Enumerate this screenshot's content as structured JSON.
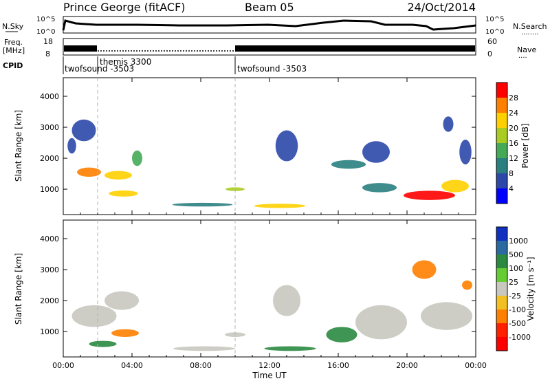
{
  "header": {
    "station": "Prince George (fitACF)",
    "beam": "Beam 05",
    "date": "24/Oct/2014"
  },
  "panels": {
    "nsky": {
      "label": "N.Sky",
      "ticks_left": [
        "10^5",
        "10^0"
      ],
      "ticks_right": [
        "10^5",
        "10^0"
      ],
      "right_label": "N.Search",
      "right_label_dots": "........"
    },
    "freq": {
      "label_top": "Freq.",
      "label_bottom": "[MHz]",
      "ticks_left": [
        "18",
        "8"
      ],
      "ticks_right": [
        "60",
        "0"
      ],
      "right_label": "Nave",
      "right_label_dots": "...."
    },
    "cpid": {
      "label": "CPID",
      "programs": [
        {
          "name": "twofsound -3503",
          "start_hour": 0.0,
          "end_hour": 2.0
        },
        {
          "name": "themis 3300",
          "start_hour": 2.0,
          "end_hour": 10.0
        },
        {
          "name": "twofsound -3503",
          "start_hour": 10.0,
          "end_hour": 24.0
        }
      ]
    },
    "power": {
      "ylabel": "Slant Range [km]",
      "colorbar_label": "Power [dB]",
      "colorbar_ticks": [
        "28",
        "24",
        "20",
        "16",
        "12",
        "8",
        "4"
      ],
      "colorbar_colors": [
        "#ff0000",
        "#ff7f00",
        "#ffd000",
        "#aacc22",
        "#44aa55",
        "#2a7f80",
        "#2c48a8",
        "#0000ff"
      ]
    },
    "velocity": {
      "ylabel": "Slant Range [km]",
      "colorbar_label": "Velocity [m s⁻¹]",
      "colorbar_ticks": [
        "1000",
        "500",
        "100",
        "25",
        "-25",
        "-100",
        "-500",
        "-1000"
      ],
      "colorbar_colors": [
        "#1030c0",
        "#2a6aa0",
        "#2a8a40",
        "#66cc33",
        "#c8c8c0",
        "#f2c020",
        "#ff8000",
        "#ff2000",
        "#ff0000"
      ]
    }
  },
  "xaxis": {
    "ticks": [
      "00:00",
      "04:00",
      "08:00",
      "12:00",
      "16:00",
      "20:00",
      "00:00"
    ],
    "label": "Time UT"
  },
  "chart_data": [
    {
      "type": "heatmap",
      "name": "power",
      "title": "",
      "xlabel": "Time UT",
      "ylabel": "Slant Range [km]",
      "xlim": [
        0,
        24
      ],
      "ylim": [
        180,
        4600
      ],
      "yticks": [
        1000,
        2000,
        3000,
        4000
      ],
      "clim": [
        0,
        32
      ],
      "units": "dB",
      "blobs": [
        {
          "x": 1.5,
          "y": 1550,
          "w": 1.4,
          "h": 300,
          "v": 26
        },
        {
          "x": 3.2,
          "y": 1450,
          "w": 1.6,
          "h": 280,
          "v": 22
        },
        {
          "x": 4.3,
          "y": 2000,
          "w": 0.6,
          "h": 500,
          "v": 14
        },
        {
          "x": 3.5,
          "y": 860,
          "w": 1.7,
          "h": 200,
          "v": 24
        },
        {
          "x": 0.5,
          "y": 2400,
          "w": 0.5,
          "h": 500,
          "v": 8
        },
        {
          "x": 1.2,
          "y": 2900,
          "w": 1.4,
          "h": 700,
          "v": 6
        },
        {
          "x": 8.1,
          "y": 500,
          "w": 3.5,
          "h": 120,
          "v": 10
        },
        {
          "x": 10.0,
          "y": 1000,
          "w": 1.1,
          "h": 120,
          "v": 20
        },
        {
          "x": 12.6,
          "y": 460,
          "w": 3.0,
          "h": 140,
          "v": 22
        },
        {
          "x": 13.0,
          "y": 2400,
          "w": 1.3,
          "h": 1000,
          "v": 7
        },
        {
          "x": 16.6,
          "y": 1800,
          "w": 2.0,
          "h": 280,
          "v": 10
        },
        {
          "x": 18.2,
          "y": 2200,
          "w": 1.6,
          "h": 700,
          "v": 8
        },
        {
          "x": 18.4,
          "y": 1050,
          "w": 2.0,
          "h": 300,
          "v": 12
        },
        {
          "x": 21.3,
          "y": 800,
          "w": 3.0,
          "h": 300,
          "v": 30
        },
        {
          "x": 22.8,
          "y": 1100,
          "w": 1.6,
          "h": 400,
          "v": 24
        },
        {
          "x": 23.4,
          "y": 2200,
          "w": 0.7,
          "h": 800,
          "v": 8
        },
        {
          "x": 22.4,
          "y": 3100,
          "w": 0.6,
          "h": 500,
          "v": 6
        }
      ]
    },
    {
      "type": "heatmap",
      "name": "velocity",
      "title": "",
      "xlabel": "Time UT",
      "ylabel": "Slant Range [km]",
      "xlim": [
        0,
        24
      ],
      "ylim": [
        180,
        4600
      ],
      "yticks": [
        1000,
        2000,
        3000,
        4000
      ],
      "clim": [
        -1000,
        1000
      ],
      "units": "m s-1",
      "blobs": [
        {
          "x": 1.8,
          "y": 1500,
          "w": 2.6,
          "h": 700,
          "v": 0
        },
        {
          "x": 3.4,
          "y": 2000,
          "w": 2.0,
          "h": 600,
          "v": 0
        },
        {
          "x": 3.6,
          "y": 950,
          "w": 1.6,
          "h": 250,
          "v": -150
        },
        {
          "x": 2.3,
          "y": 600,
          "w": 1.6,
          "h": 200,
          "v": 120
        },
        {
          "x": 8.2,
          "y": 450,
          "w": 3.6,
          "h": 150,
          "v": 0
        },
        {
          "x": 10.0,
          "y": 900,
          "w": 1.2,
          "h": 150,
          "v": 0
        },
        {
          "x": 13.2,
          "y": 450,
          "w": 3.0,
          "h": 150,
          "v": 150
        },
        {
          "x": 13.0,
          "y": 2000,
          "w": 1.6,
          "h": 1000,
          "v": 0
        },
        {
          "x": 16.2,
          "y": 900,
          "w": 1.8,
          "h": 500,
          "v": 200
        },
        {
          "x": 18.5,
          "y": 1300,
          "w": 3.0,
          "h": 1100,
          "v": 0
        },
        {
          "x": 22.3,
          "y": 1500,
          "w": 3.0,
          "h": 900,
          "v": 0
        },
        {
          "x": 21.0,
          "y": 3000,
          "w": 1.4,
          "h": 600,
          "v": -400
        },
        {
          "x": 23.5,
          "y": 2500,
          "w": 0.6,
          "h": 300,
          "v": -150
        }
      ]
    }
  ]
}
